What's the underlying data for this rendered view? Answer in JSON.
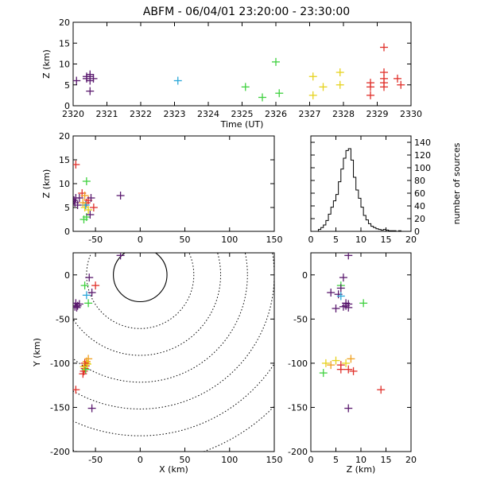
{
  "title": "ABFM - 06/04/01 23:20:00 - 23:30:00",
  "colors": {
    "c1": "#5a1a6e",
    "c2": "#2aa7d9",
    "c3": "#3fd13f",
    "c4": "#e6d21c",
    "c5": "#f0a020",
    "c6": "#e0302a"
  },
  "chart_data": [
    {
      "type": "scatter",
      "id": "time-height",
      "xlabel": "Time (UT)",
      "ylabel": "Z (km)",
      "xlim": [
        2320,
        2330
      ],
      "ylim": [
        0,
        20
      ],
      "xticks": [
        "2320",
        "2321",
        "2322",
        "2323",
        "2324",
        "2325",
        "2326",
        "2327",
        "2328",
        "2329",
        "2330"
      ],
      "yticks": [
        "0",
        "5",
        "10",
        "15",
        "20"
      ],
      "points": [
        {
          "x": 2320.1,
          "y": 6,
          "c": "c1"
        },
        {
          "x": 2320.4,
          "y": 6.5,
          "c": "c1"
        },
        {
          "x": 2320.5,
          "y": 7.5,
          "c": "c1"
        },
        {
          "x": 2320.5,
          "y": 7,
          "c": "c1"
        },
        {
          "x": 2320.6,
          "y": 6.5,
          "c": "c1"
        },
        {
          "x": 2320.5,
          "y": 6,
          "c": "c1"
        },
        {
          "x": 2320.4,
          "y": 7,
          "c": "c1"
        },
        {
          "x": 2320.5,
          "y": 3.5,
          "c": "c1"
        },
        {
          "x": 2323.1,
          "y": 6,
          "c": "c2"
        },
        {
          "x": 2325.1,
          "y": 4.5,
          "c": "c3"
        },
        {
          "x": 2325.6,
          "y": 2,
          "c": "c3"
        },
        {
          "x": 2326.0,
          "y": 10.5,
          "c": "c3"
        },
        {
          "x": 2326.1,
          "y": 3,
          "c": "c3"
        },
        {
          "x": 2327.1,
          "y": 7,
          "c": "c4"
        },
        {
          "x": 2327.1,
          "y": 2.5,
          "c": "c4"
        },
        {
          "x": 2327.4,
          "y": 4.5,
          "c": "c4"
        },
        {
          "x": 2327.9,
          "y": 8,
          "c": "c4"
        },
        {
          "x": 2327.9,
          "y": 5,
          "c": "c4"
        },
        {
          "x": 2328.8,
          "y": 5.5,
          "c": "c6"
        },
        {
          "x": 2328.8,
          "y": 4.5,
          "c": "c6"
        },
        {
          "x": 2328.8,
          "y": 2.5,
          "c": "c6"
        },
        {
          "x": 2329.2,
          "y": 14,
          "c": "c6"
        },
        {
          "x": 2329.2,
          "y": 8,
          "c": "c6"
        },
        {
          "x": 2329.2,
          "y": 6.5,
          "c": "c6"
        },
        {
          "x": 2329.2,
          "y": 5.5,
          "c": "c6"
        },
        {
          "x": 2329.2,
          "y": 4.5,
          "c": "c6"
        },
        {
          "x": 2329.6,
          "y": 6.5,
          "c": "c6"
        },
        {
          "x": 2329.7,
          "y": 5,
          "c": "c6"
        }
      ]
    },
    {
      "type": "scatter",
      "id": "x-height",
      "xlabel": "",
      "ylabel": "Z (km)",
      "xlim": [
        -75,
        150
      ],
      "ylim": [
        0,
        20
      ],
      "xticks": [
        "-50",
        "0",
        "50",
        "100",
        "150"
      ],
      "yticks": [
        "0",
        "5",
        "10",
        "15",
        "20"
      ],
      "points": [
        {
          "x": -72,
          "y": 14,
          "c": "c6"
        },
        {
          "x": -60,
          "y": 10.5,
          "c": "c3"
        },
        {
          "x": -22,
          "y": 7.5,
          "c": "c1"
        },
        {
          "x": -72,
          "y": 7,
          "c": "c1"
        },
        {
          "x": -73,
          "y": 6,
          "c": "c1"
        },
        {
          "x": -70,
          "y": 5.5,
          "c": "c1"
        },
        {
          "x": -74,
          "y": 6.5,
          "c": "c1"
        },
        {
          "x": -68,
          "y": 7,
          "c": "c1"
        },
        {
          "x": -65,
          "y": 8,
          "c": "c6"
        },
        {
          "x": -62,
          "y": 7.5,
          "c": "c5"
        },
        {
          "x": -60,
          "y": 6,
          "c": "c6"
        },
        {
          "x": -58,
          "y": 6.5,
          "c": "c6"
        },
        {
          "x": -55,
          "y": 7,
          "c": "c1"
        },
        {
          "x": -62,
          "y": 5,
          "c": "c4"
        },
        {
          "x": -58,
          "y": 4.5,
          "c": "c4"
        },
        {
          "x": -60,
          "y": 3,
          "c": "c3"
        },
        {
          "x": -63,
          "y": 2.5,
          "c": "c3"
        },
        {
          "x": -56,
          "y": 3.5,
          "c": "c1"
        },
        {
          "x": -52,
          "y": 5,
          "c": "c6"
        },
        {
          "x": -61,
          "y": 5.5,
          "c": "c2"
        },
        {
          "x": -64,
          "y": 6,
          "c": "c5"
        }
      ]
    },
    {
      "type": "histogram",
      "id": "height-histogram",
      "xlabel": "",
      "ylabel": "number of sources",
      "xlim": [
        0,
        20
      ],
      "ylim": [
        0,
        150
      ],
      "xticks": [
        "0",
        "5",
        "10",
        "15",
        "20"
      ],
      "yticks": [
        "0",
        "20",
        "40",
        "60",
        "80",
        "100",
        "120",
        "140"
      ],
      "bin_width": 0.5,
      "x": [
        1.5,
        2,
        2.5,
        3,
        3.5,
        4,
        4.5,
        5,
        5.5,
        6,
        6.5,
        7,
        7.5,
        8,
        8.5,
        9,
        9.5,
        10,
        10.5,
        11,
        11.5,
        12,
        12.5,
        13,
        13.5,
        14,
        14.5,
        15,
        15.5,
        16,
        16.5,
        17,
        17.5,
        18,
        18.5,
        19,
        19.5
      ],
      "values": [
        3,
        6,
        10,
        17,
        27,
        38,
        48,
        58,
        78,
        98,
        115,
        127,
        130,
        112,
        85,
        65,
        52,
        38,
        25,
        18,
        12,
        8,
        6,
        4,
        3,
        2,
        3,
        2,
        1,
        1,
        1,
        0,
        1,
        0,
        0,
        0,
        0
      ]
    },
    {
      "type": "scatter",
      "id": "plan-view",
      "xlabel": "X (km)",
      "ylabel": "Y (km)",
      "xlim": [
        -75,
        150
      ],
      "ylim": [
        -200,
        25
      ],
      "xticks": [
        "-50",
        "0",
        "50",
        "100",
        "150"
      ],
      "yticks": [
        "-200",
        "-150",
        "-100",
        "-50",
        "0"
      ],
      "range_rings_km": [
        30,
        60,
        90,
        120,
        150,
        180,
        210
      ],
      "points": [
        {
          "x": -22,
          "y": 22,
          "c": "c1"
        },
        {
          "x": -57,
          "y": -3,
          "c": "c1"
        },
        {
          "x": -62,
          "y": -12,
          "c": "c3"
        },
        {
          "x": -50,
          "y": -12,
          "c": "c6"
        },
        {
          "x": -54,
          "y": -20,
          "c": "c1"
        },
        {
          "x": -60,
          "y": -23,
          "c": "c2"
        },
        {
          "x": -72,
          "y": -32,
          "c": "c1"
        },
        {
          "x": -70,
          "y": -35,
          "c": "c1"
        },
        {
          "x": -73,
          "y": -36,
          "c": "c1"
        },
        {
          "x": -68,
          "y": -33,
          "c": "c1"
        },
        {
          "x": -71,
          "y": -37,
          "c": "c1"
        },
        {
          "x": -58,
          "y": -32,
          "c": "c3"
        },
        {
          "x": -58,
          "y": -95,
          "c": "c5"
        },
        {
          "x": -60,
          "y": -100,
          "c": "c4"
        },
        {
          "x": -61,
          "y": -103,
          "c": "c6"
        },
        {
          "x": -62,
          "y": -106,
          "c": "c6"
        },
        {
          "x": -63,
          "y": -109,
          "c": "c6"
        },
        {
          "x": -64,
          "y": -112,
          "c": "c6"
        },
        {
          "x": -60,
          "y": -98,
          "c": "c5"
        },
        {
          "x": -59,
          "y": -101,
          "c": "c4"
        },
        {
          "x": -62,
          "y": -100,
          "c": "c6"
        },
        {
          "x": -61,
          "y": -107,
          "c": "c3"
        },
        {
          "x": -63,
          "y": -104,
          "c": "c4"
        },
        {
          "x": -72,
          "y": -130,
          "c": "c6"
        },
        {
          "x": -54,
          "y": -151,
          "c": "c1"
        }
      ]
    },
    {
      "type": "scatter",
      "id": "height-y",
      "xlabel": "Z (km)",
      "ylabel": "",
      "xlim": [
        0,
        20
      ],
      "ylim": [
        -200,
        25
      ],
      "xticks": [
        "0",
        "5",
        "10",
        "15",
        "20"
      ],
      "yticks": [
        "-200",
        "-150",
        "-100",
        "-50",
        "0"
      ],
      "points": [
        {
          "x": 7.5,
          "y": 22,
          "c": "c1"
        },
        {
          "x": 6.5,
          "y": -3,
          "c": "c1"
        },
        {
          "x": 6,
          "y": -12,
          "c": "c3"
        },
        {
          "x": 6,
          "y": -15,
          "c": "c1"
        },
        {
          "x": 4,
          "y": -20,
          "c": "c1"
        },
        {
          "x": 5.5,
          "y": -22,
          "c": "c1"
        },
        {
          "x": 6,
          "y": -24,
          "c": "c2"
        },
        {
          "x": 7,
          "y": -32,
          "c": "c1"
        },
        {
          "x": 7,
          "y": -35,
          "c": "c1"
        },
        {
          "x": 7.5,
          "y": -37,
          "c": "c1"
        },
        {
          "x": 6.5,
          "y": -36,
          "c": "c1"
        },
        {
          "x": 7.5,
          "y": -33,
          "c": "c1"
        },
        {
          "x": 5,
          "y": -38,
          "c": "c1"
        },
        {
          "x": 10.5,
          "y": -32,
          "c": "c3"
        },
        {
          "x": 8,
          "y": -95,
          "c": "c5"
        },
        {
          "x": 5,
          "y": -97,
          "c": "c4"
        },
        {
          "x": 7,
          "y": -100,
          "c": "c4"
        },
        {
          "x": 3,
          "y": -100,
          "c": "c4"
        },
        {
          "x": 4,
          "y": -102,
          "c": "c5"
        },
        {
          "x": 6,
          "y": -102,
          "c": "c6"
        },
        {
          "x": 6,
          "y": -107,
          "c": "c6"
        },
        {
          "x": 7.5,
          "y": -107,
          "c": "c6"
        },
        {
          "x": 8.5,
          "y": -109,
          "c": "c6"
        },
        {
          "x": 2.5,
          "y": -111,
          "c": "c3"
        },
        {
          "x": 14,
          "y": -130,
          "c": "c6"
        },
        {
          "x": 7.5,
          "y": -151,
          "c": "c1"
        }
      ]
    }
  ]
}
